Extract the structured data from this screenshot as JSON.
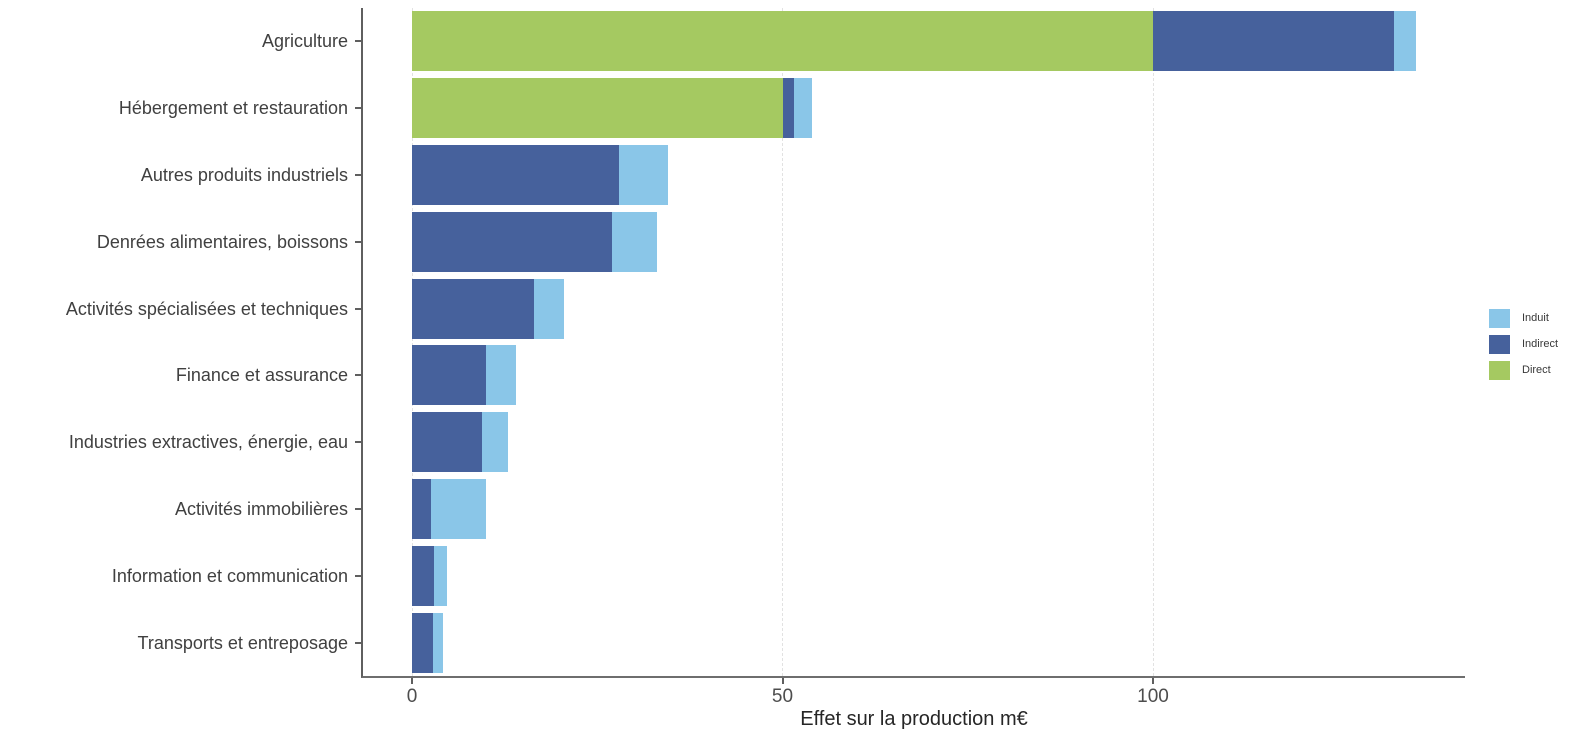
{
  "chart_data": {
    "type": "bar",
    "orientation": "horizontal",
    "stacked": true,
    "title": "",
    "xlabel": "Effet sur la production m€",
    "ylabel": "",
    "xlim": [
      -6.6,
      142
    ],
    "grid": "major-x-dashed",
    "x_ticks": [
      {
        "label": "0",
        "value": 0
      },
      {
        "label": "50",
        "value": 50
      },
      {
        "label": "100",
        "value": 100
      }
    ],
    "grid_x_values": [
      0,
      50,
      100
    ],
    "categories": [
      "Agriculture",
      "Hébergement et restauration",
      "Autres produits industriels",
      "Denrées alimentaires, boissons",
      "Activités spécialisées et techniques",
      "Finance et assurance",
      "Industries extractives, énergie, eau",
      "Activités immobilières",
      "Information et communication",
      "Transports et entreposage"
    ],
    "series": [
      {
        "name": "Direct",
        "color": "#a5c961",
        "values": [
          100,
          50,
          0,
          0,
          0,
          0,
          0,
          0,
          0,
          0
        ]
      },
      {
        "name": "Indirect",
        "color": "#46619c",
        "values": [
          32.5,
          1.5,
          28,
          27,
          16.5,
          10,
          9.5,
          2.5,
          3,
          2.8
        ]
      },
      {
        "name": "Induit",
        "color": "#8ac6e8",
        "values": [
          3,
          2.5,
          6.5,
          6,
          4,
          4,
          3.5,
          7.5,
          1.7,
          1.4
        ]
      }
    ],
    "legend": {
      "position": "right",
      "entries": [
        {
          "label": "Induit",
          "color": "#8ac6e8"
        },
        {
          "label": "Indirect",
          "color": "#46619c"
        },
        {
          "label": "Direct",
          "color": "#a5c961"
        }
      ]
    }
  }
}
